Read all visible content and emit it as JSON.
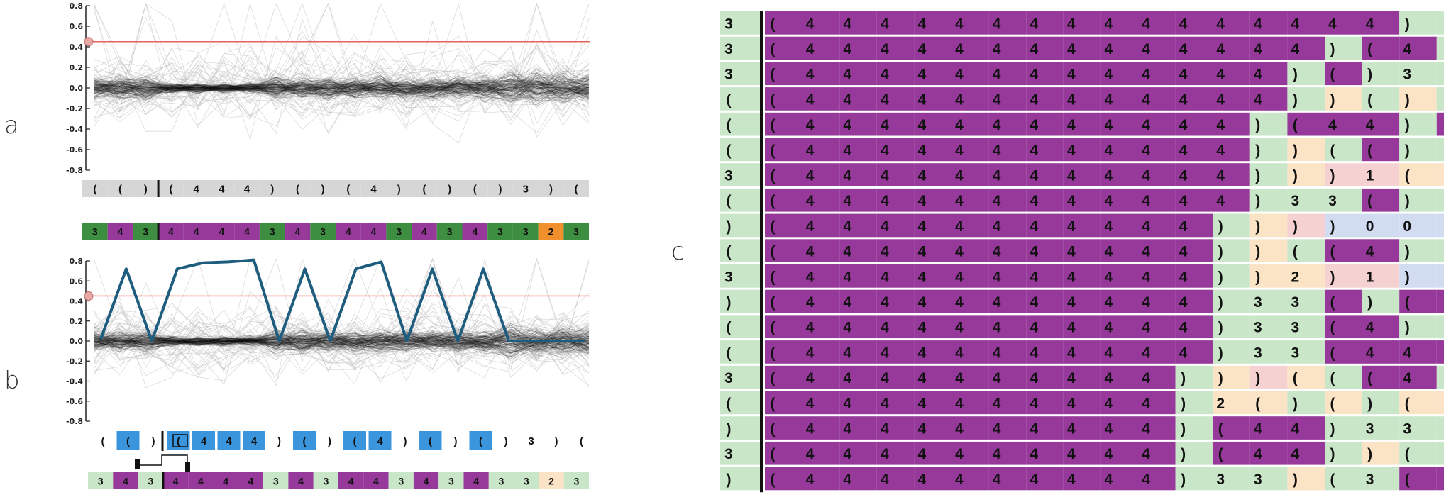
{
  "panels": {
    "a": {
      "label": "a"
    },
    "b": {
      "label": "b"
    },
    "c": {
      "label": "c"
    }
  },
  "y_ticks": [
    "0.8",
    "0.6",
    "0.4",
    "0.2",
    "0.0",
    "-0.2",
    "-0.4",
    "-0.6",
    "-0.8"
  ],
  "threshold": 0.45,
  "colors": {
    "gray_track": "#d6d6d6",
    "green_dark": "#3e8e41",
    "purple": "#96399a",
    "orange": "#f08f2c",
    "blue": "#3a95dc",
    "green_light": "#c9e6c9",
    "peach": "#fbe3c6",
    "pink": "#f6d1d1",
    "lavender": "#d2dcf0",
    "threshold_line": "#e8625a",
    "highlight_line": "#1f5d7f"
  },
  "a": {
    "token_track": [
      "(",
      "(",
      ")",
      "(",
      "4",
      "4",
      "4",
      ")",
      "(",
      ")",
      "(",
      "4",
      ")",
      "(",
      ")",
      "(",
      ")",
      "3",
      ")",
      "("
    ],
    "label_track": [
      {
        "t": "3",
        "c": "green_dark"
      },
      {
        "t": "4",
        "c": "purple"
      },
      {
        "t": "3",
        "c": "green_dark"
      },
      {
        "t": "4",
        "c": "purple"
      },
      {
        "t": "4",
        "c": "purple"
      },
      {
        "t": "4",
        "c": "purple"
      },
      {
        "t": "4",
        "c": "purple"
      },
      {
        "t": "3",
        "c": "green_dark"
      },
      {
        "t": "4",
        "c": "purple"
      },
      {
        "t": "3",
        "c": "green_dark"
      },
      {
        "t": "4",
        "c": "purple"
      },
      {
        "t": "4",
        "c": "purple"
      },
      {
        "t": "3",
        "c": "green_dark"
      },
      {
        "t": "4",
        "c": "purple"
      },
      {
        "t": "3",
        "c": "green_dark"
      },
      {
        "t": "4",
        "c": "purple"
      },
      {
        "t": "3",
        "c": "green_dark"
      },
      {
        "t": "3",
        "c": "green_dark"
      },
      {
        "t": "2",
        "c": "orange"
      },
      {
        "t": "3",
        "c": "green_dark"
      }
    ]
  },
  "b": {
    "highlight_values": [
      0.02,
      0.72,
      0.0,
      0.72,
      0.78,
      0.79,
      0.81,
      0.0,
      0.72,
      0.0,
      0.72,
      0.79,
      0.0,
      0.72,
      0.0,
      0.72,
      0.0,
      0.0,
      0.0,
      0.0
    ],
    "token_track": [
      {
        "t": "(",
        "c": "none"
      },
      {
        "t": "(",
        "c": "blue"
      },
      {
        "t": ")",
        "c": "none"
      },
      {
        "t": "(",
        "c": "blue"
      },
      {
        "t": "4",
        "c": "blue"
      },
      {
        "t": "4",
        "c": "blue"
      },
      {
        "t": "4",
        "c": "blue"
      },
      {
        "t": ")",
        "c": "none"
      },
      {
        "t": "(",
        "c": "blue"
      },
      {
        "t": ")",
        "c": "none"
      },
      {
        "t": "(",
        "c": "blue"
      },
      {
        "t": "4",
        "c": "blue"
      },
      {
        "t": ")",
        "c": "none"
      },
      {
        "t": "(",
        "c": "blue"
      },
      {
        "t": ")",
        "c": "none"
      },
      {
        "t": "(",
        "c": "blue"
      },
      {
        "t": ")",
        "c": "none"
      },
      {
        "t": "3",
        "c": "none"
      },
      {
        "t": ")",
        "c": "none"
      },
      {
        "t": "(",
        "c": "none"
      }
    ],
    "label_track": [
      {
        "t": "3",
        "c": "green_light"
      },
      {
        "t": "4",
        "c": "purple"
      },
      {
        "t": "3",
        "c": "green_light"
      },
      {
        "t": "4",
        "c": "purple"
      },
      {
        "t": "4",
        "c": "purple"
      },
      {
        "t": "4",
        "c": "purple"
      },
      {
        "t": "4",
        "c": "purple"
      },
      {
        "t": "3",
        "c": "green_light"
      },
      {
        "t": "4",
        "c": "purple"
      },
      {
        "t": "3",
        "c": "green_light"
      },
      {
        "t": "4",
        "c": "purple"
      },
      {
        "t": "4",
        "c": "purple"
      },
      {
        "t": "3",
        "c": "green_light"
      },
      {
        "t": "4",
        "c": "purple"
      },
      {
        "t": "3",
        "c": "green_light"
      },
      {
        "t": "4",
        "c": "purple"
      },
      {
        "t": "3",
        "c": "green_light"
      },
      {
        "t": "3",
        "c": "green_light"
      },
      {
        "t": "2",
        "c": "peach"
      },
      {
        "t": "3",
        "c": "green_light"
      }
    ]
  },
  "c": {
    "first_col": [
      {
        "t": "3",
        "c": "green_light"
      },
      {
        "t": "3",
        "c": "green_light"
      },
      {
        "t": "3",
        "c": "green_light"
      },
      {
        "t": "(",
        "c": "green_light"
      },
      {
        "t": "(",
        "c": "green_light"
      },
      {
        "t": "(",
        "c": "green_light"
      },
      {
        "t": "3",
        "c": "green_light"
      },
      {
        "t": "(",
        "c": "green_light"
      },
      {
        "t": ")",
        "c": "green_light"
      },
      {
        "t": "(",
        "c": "green_light"
      },
      {
        "t": "3",
        "c": "green_light"
      },
      {
        "t": ")",
        "c": "green_light"
      },
      {
        "t": "(",
        "c": "green_light"
      },
      {
        "t": "(",
        "c": "green_light"
      },
      {
        "t": "3",
        "c": "green_light"
      },
      {
        "t": "(",
        "c": "green_light"
      },
      {
        "t": ")",
        "c": "green_light"
      },
      {
        "t": "3",
        "c": "green_light"
      },
      {
        "t": ")",
        "c": "green_light"
      }
    ],
    "rows": [
      [
        "(",
        "4",
        "4",
        "4",
        "4",
        "4",
        "4",
        "4",
        "4",
        "4",
        "4",
        "4",
        "4",
        "4",
        "4",
        "4",
        "4",
        ")",
        ""
      ],
      [
        "(",
        "4",
        "4",
        "4",
        "4",
        "4",
        "4",
        "4",
        "4",
        "4",
        "4",
        "4",
        "4",
        "4",
        "4",
        ")",
        "(",
        "4",
        ""
      ],
      [
        "(",
        "4",
        "4",
        "4",
        "4",
        "4",
        "4",
        "4",
        "4",
        "4",
        "4",
        "4",
        "4",
        "4",
        ")",
        "(",
        ")",
        "3",
        ""
      ],
      [
        "(",
        "4",
        "4",
        "4",
        "4",
        "4",
        "4",
        "4",
        "4",
        "4",
        "4",
        "4",
        "4",
        "4",
        ")",
        ")",
        "(",
        ")",
        ""
      ],
      [
        "(",
        "4",
        "4",
        "4",
        "4",
        "4",
        "4",
        "4",
        "4",
        "4",
        "4",
        "4",
        "4",
        ")",
        "(",
        "4",
        "4",
        ")",
        ""
      ],
      [
        "(",
        "4",
        "4",
        "4",
        "4",
        "4",
        "4",
        "4",
        "4",
        "4",
        "4",
        "4",
        "4",
        ")",
        ")",
        "(",
        "(",
        ")",
        ""
      ],
      [
        "(",
        "4",
        "4",
        "4",
        "4",
        "4",
        "4",
        "4",
        "4",
        "4",
        "4",
        "4",
        "4",
        ")",
        ")",
        ")",
        "1",
        "(",
        ""
      ],
      [
        "(",
        "4",
        "4",
        "4",
        "4",
        "4",
        "4",
        "4",
        "4",
        "4",
        "4",
        "4",
        "4",
        ")",
        "3",
        "3",
        "(",
        ")",
        ""
      ],
      [
        "(",
        "4",
        "4",
        "4",
        "4",
        "4",
        "4",
        "4",
        "4",
        "4",
        "4",
        "4",
        ")",
        ")",
        ")",
        ")",
        "0",
        "0",
        ""
      ],
      [
        "(",
        "4",
        "4",
        "4",
        "4",
        "4",
        "4",
        "4",
        "4",
        "4",
        "4",
        "4",
        ")",
        ")",
        "(",
        "(",
        "4",
        ")",
        ""
      ],
      [
        "(",
        "4",
        "4",
        "4",
        "4",
        "4",
        "4",
        "4",
        "4",
        "4",
        "4",
        "4",
        ")",
        ")",
        "2",
        ")",
        "1",
        ")",
        ""
      ],
      [
        "(",
        "4",
        "4",
        "4",
        "4",
        "4",
        "4",
        "4",
        "4",
        "4",
        "4",
        "4",
        ")",
        "3",
        "3",
        "(",
        ")",
        "(",
        ""
      ],
      [
        "(",
        "4",
        "4",
        "4",
        "4",
        "4",
        "4",
        "4",
        "4",
        "4",
        "4",
        "4",
        ")",
        "3",
        "3",
        "(",
        "4",
        ")",
        ""
      ],
      [
        "(",
        "4",
        "4",
        "4",
        "4",
        "4",
        "4",
        "4",
        "4",
        "4",
        "4",
        "4",
        ")",
        "3",
        "3",
        "(",
        "4",
        "4",
        ""
      ],
      [
        "(",
        "4",
        "4",
        "4",
        "4",
        "4",
        "4",
        "4",
        "4",
        "4",
        "4",
        ")",
        ")",
        ")",
        "(",
        "(",
        "(",
        "4",
        ""
      ],
      [
        "(",
        "4",
        "4",
        "4",
        "4",
        "4",
        "4",
        "4",
        "4",
        "4",
        "4",
        ")",
        "2",
        "(",
        ")",
        "(",
        ")",
        "(",
        ""
      ],
      [
        "(",
        "4",
        "4",
        "4",
        "4",
        "4",
        "4",
        "4",
        "4",
        "4",
        "4",
        ")",
        "(",
        "4",
        "4",
        ")",
        "3",
        "3",
        ""
      ],
      [
        "(",
        "4",
        "4",
        "4",
        "4",
        "4",
        "4",
        "4",
        "4",
        "4",
        "4",
        ")",
        "(",
        "4",
        "4",
        ")",
        ")",
        "(",
        ""
      ],
      [
        "(",
        "4",
        "4",
        "4",
        "4",
        "4",
        "4",
        "4",
        "4",
        "4",
        "4",
        ")",
        "3",
        "3",
        ")",
        "(",
        "3",
        "(",
        ""
      ]
    ],
    "row_colors": [
      [
        "purple",
        "purple",
        "purple",
        "purple",
        "purple",
        "purple",
        "purple",
        "purple",
        "purple",
        "purple",
        "purple",
        "purple",
        "purple",
        "purple",
        "purple",
        "purple",
        "purple",
        "green_light",
        "green_light"
      ],
      [
        "purple",
        "purple",
        "purple",
        "purple",
        "purple",
        "purple",
        "purple",
        "purple",
        "purple",
        "purple",
        "purple",
        "purple",
        "purple",
        "purple",
        "purple",
        "green_light",
        "purple",
        "purple",
        "green_light"
      ],
      [
        "purple",
        "purple",
        "purple",
        "purple",
        "purple",
        "purple",
        "purple",
        "purple",
        "purple",
        "purple",
        "purple",
        "purple",
        "purple",
        "purple",
        "green_light",
        "purple",
        "green_light",
        "green_light",
        "green_light"
      ],
      [
        "purple",
        "purple",
        "purple",
        "purple",
        "purple",
        "purple",
        "purple",
        "purple",
        "purple",
        "purple",
        "purple",
        "purple",
        "purple",
        "purple",
        "green_light",
        "peach",
        "green_light",
        "peach",
        "green_light"
      ],
      [
        "purple",
        "purple",
        "purple",
        "purple",
        "purple",
        "purple",
        "purple",
        "purple",
        "purple",
        "purple",
        "purple",
        "purple",
        "purple",
        "green_light",
        "purple",
        "purple",
        "purple",
        "green_light",
        "purple"
      ],
      [
        "purple",
        "purple",
        "purple",
        "purple",
        "purple",
        "purple",
        "purple",
        "purple",
        "purple",
        "purple",
        "purple",
        "purple",
        "purple",
        "green_light",
        "peach",
        "green_light",
        "purple",
        "green_light",
        "green_light"
      ],
      [
        "purple",
        "purple",
        "purple",
        "purple",
        "purple",
        "purple",
        "purple",
        "purple",
        "purple",
        "purple",
        "purple",
        "purple",
        "purple",
        "green_light",
        "peach",
        "pink",
        "pink",
        "peach",
        "peach"
      ],
      [
        "purple",
        "purple",
        "purple",
        "purple",
        "purple",
        "purple",
        "purple",
        "purple",
        "purple",
        "purple",
        "purple",
        "purple",
        "purple",
        "green_light",
        "green_light",
        "green_light",
        "purple",
        "green_light",
        "green_light"
      ],
      [
        "purple",
        "purple",
        "purple",
        "purple",
        "purple",
        "purple",
        "purple",
        "purple",
        "purple",
        "purple",
        "purple",
        "purple",
        "green_light",
        "peach",
        "pink",
        "lavender",
        "lavender",
        "lavender",
        "lavender"
      ],
      [
        "purple",
        "purple",
        "purple",
        "purple",
        "purple",
        "purple",
        "purple",
        "purple",
        "purple",
        "purple",
        "purple",
        "purple",
        "green_light",
        "peach",
        "green_light",
        "purple",
        "purple",
        "green_light",
        "green_light"
      ],
      [
        "purple",
        "purple",
        "purple",
        "purple",
        "purple",
        "purple",
        "purple",
        "purple",
        "purple",
        "purple",
        "purple",
        "purple",
        "green_light",
        "peach",
        "peach",
        "pink",
        "pink",
        "lavender",
        "lavender"
      ],
      [
        "purple",
        "purple",
        "purple",
        "purple",
        "purple",
        "purple",
        "purple",
        "purple",
        "purple",
        "purple",
        "purple",
        "purple",
        "green_light",
        "green_light",
        "green_light",
        "purple",
        "green_light",
        "purple",
        "purple"
      ],
      [
        "purple",
        "purple",
        "purple",
        "purple",
        "purple",
        "purple",
        "purple",
        "purple",
        "purple",
        "purple",
        "purple",
        "purple",
        "green_light",
        "green_light",
        "green_light",
        "purple",
        "purple",
        "green_light",
        "green_light"
      ],
      [
        "purple",
        "purple",
        "purple",
        "purple",
        "purple",
        "purple",
        "purple",
        "purple",
        "purple",
        "purple",
        "purple",
        "purple",
        "green_light",
        "green_light",
        "green_light",
        "purple",
        "purple",
        "purple",
        "purple"
      ],
      [
        "purple",
        "purple",
        "purple",
        "purple",
        "purple",
        "purple",
        "purple",
        "purple",
        "purple",
        "purple",
        "purple",
        "green_light",
        "peach",
        "pink",
        "peach",
        "green_light",
        "purple",
        "purple",
        "green_light"
      ],
      [
        "purple",
        "purple",
        "purple",
        "purple",
        "purple",
        "purple",
        "purple",
        "purple",
        "purple",
        "purple",
        "purple",
        "green_light",
        "peach",
        "peach",
        "green_light",
        "peach",
        "green_light",
        "peach",
        "peach"
      ],
      [
        "purple",
        "purple",
        "purple",
        "purple",
        "purple",
        "purple",
        "purple",
        "purple",
        "purple",
        "purple",
        "purple",
        "green_light",
        "purple",
        "purple",
        "purple",
        "green_light",
        "green_light",
        "green_light",
        "green_light"
      ],
      [
        "purple",
        "purple",
        "purple",
        "purple",
        "purple",
        "purple",
        "purple",
        "purple",
        "purple",
        "purple",
        "purple",
        "green_light",
        "purple",
        "purple",
        "purple",
        "green_light",
        "peach",
        "green_light",
        "green_light"
      ],
      [
        "purple",
        "purple",
        "purple",
        "purple",
        "purple",
        "purple",
        "purple",
        "purple",
        "purple",
        "purple",
        "purple",
        "green_light",
        "green_light",
        "green_light",
        "peach",
        "green_light",
        "green_light",
        "purple",
        "purple"
      ]
    ]
  }
}
